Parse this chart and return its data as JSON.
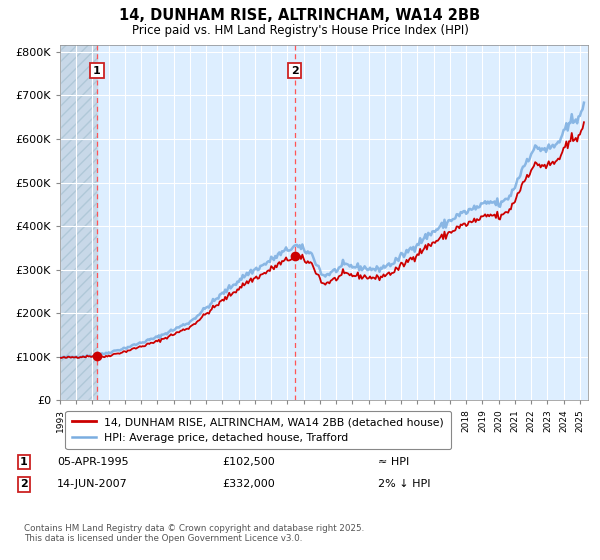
{
  "title": "14, DUNHAM RISE, ALTRINCHAM, WA14 2BB",
  "subtitle": "Price paid vs. HM Land Registry's House Price Index (HPI)",
  "xmin": 1993.0,
  "xmax": 2025.5,
  "ymin": 0,
  "ymax": 800000,
  "yticks": [
    0,
    100000,
    200000,
    300000,
    400000,
    500000,
    600000,
    700000,
    800000
  ],
  "ytick_labels": [
    "£0",
    "£100K",
    "£200K",
    "£300K",
    "£400K",
    "£500K",
    "£600K",
    "£700K",
    "£800K"
  ],
  "sale1_x": 1995.27,
  "sale1_y": 102500,
  "sale1_label": "1",
  "sale2_x": 2007.45,
  "sale2_y": 332000,
  "sale2_label": "2",
  "legend_line1": "14, DUNHAM RISE, ALTRINCHAM, WA14 2BB (detached house)",
  "legend_line2": "HPI: Average price, detached house, Trafford",
  "footnote": "Contains HM Land Registry data © Crown copyright and database right 2025.\nThis data is licensed under the Open Government Licence v3.0.",
  "line_color": "#cc0000",
  "hpi_color": "#7aade0",
  "chart_bg": "#ddeeff",
  "hatch_bg": "#c8d8e8",
  "vline_color": "#ff5555",
  "grid_color": "#ffffff",
  "box_color": "#cc2222"
}
